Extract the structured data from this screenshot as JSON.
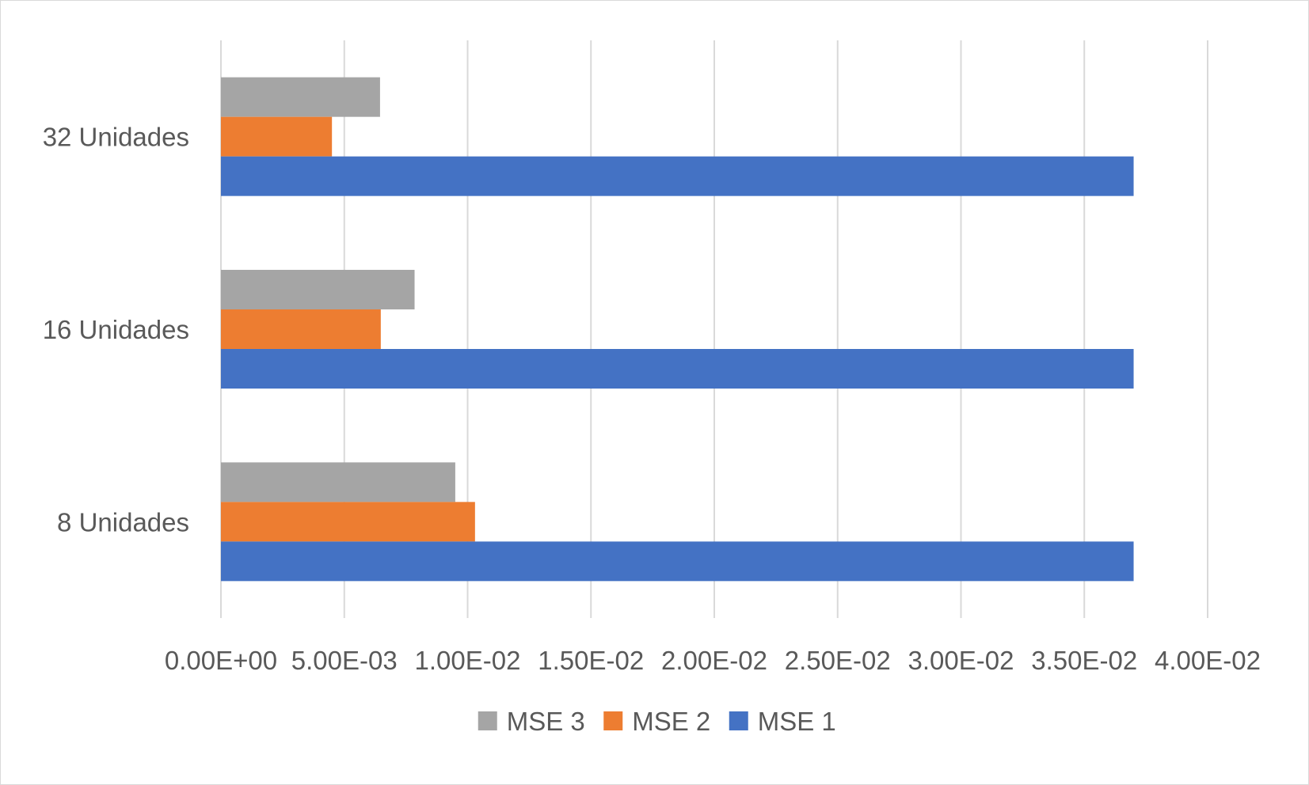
{
  "chart_data": {
    "type": "bar",
    "orientation": "horizontal",
    "title": "",
    "xlabel": "",
    "ylabel": "",
    "categories": [
      "32 Unidades",
      "16 Unidades",
      "8 Unidades"
    ],
    "series": [
      {
        "name": "MSE 3",
        "color": "#a5a5a5",
        "values": [
          0.00645,
          0.00785,
          0.0095
        ]
      },
      {
        "name": "MSE 2",
        "color": "#ed7d31",
        "values": [
          0.0045,
          0.00648,
          0.0103
        ]
      },
      {
        "name": "MSE 1",
        "color": "#4472c4",
        "values": [
          0.037,
          0.037,
          0.037
        ]
      }
    ],
    "xlim": [
      0,
      0.04
    ],
    "x_ticks": [
      "0.00E+00",
      "5.00E-03",
      "1.00E-02",
      "1.50E-02",
      "2.00E-02",
      "2.50E-02",
      "3.00E-02",
      "3.50E-02",
      "4.00E-02"
    ],
    "x_tick_values": [
      0,
      0.005,
      0.01,
      0.015,
      0.02,
      0.025,
      0.03,
      0.035,
      0.04
    ],
    "grid": "vertical",
    "legend_position": "bottom",
    "legend": [
      "MSE 3",
      "MSE 2",
      "MSE 1"
    ]
  }
}
